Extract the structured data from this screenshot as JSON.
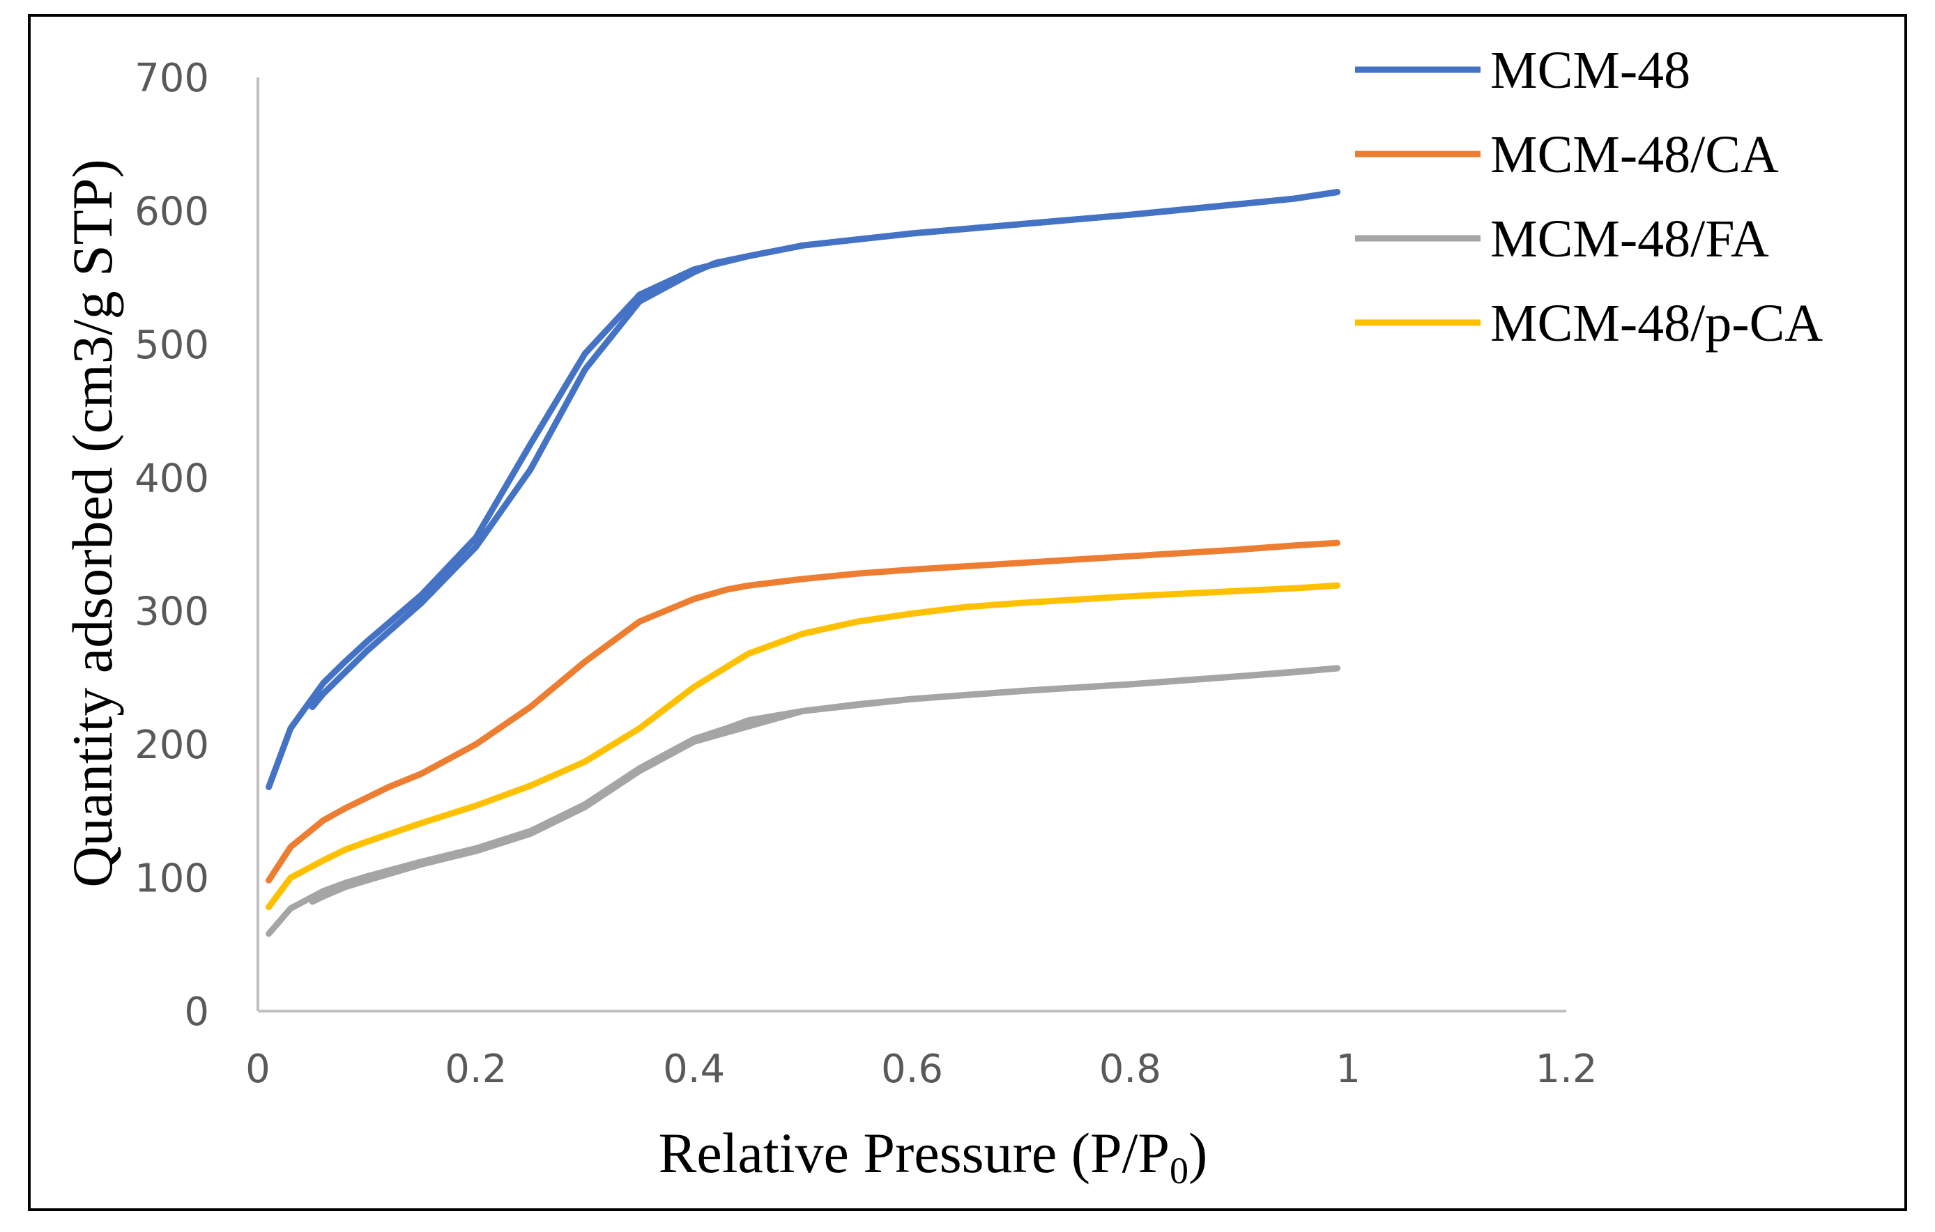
{
  "chart_data": {
    "type": "line",
    "title": "",
    "xlabel": "Relative Pressure (P/P",
    "xlabel_subscript": "0",
    "xlabel_suffix": ")",
    "ylabel": "Quantity adsorbed (cm3/g STP)",
    "xlim": [
      0,
      1.2
    ],
    "ylim": [
      0,
      700
    ],
    "xticks": [
      0,
      0.2,
      0.4,
      0.6,
      0.8,
      1,
      1.2
    ],
    "xtick_labels": [
      "0",
      "0.2",
      "0.4",
      "0.6",
      "0.8",
      "1",
      "1.2"
    ],
    "yticks": [
      0,
      100,
      200,
      300,
      400,
      500,
      600,
      700
    ],
    "ytick_labels": [
      "0",
      "100",
      "200",
      "300",
      "400",
      "500",
      "600",
      "700"
    ],
    "grid": false,
    "legend_position": "top-right",
    "series": [
      {
        "name": "MCM-48",
        "color": "#4472C4",
        "adsorption": [
          [
            0.01,
            168
          ],
          [
            0.03,
            212
          ],
          [
            0.06,
            246
          ],
          [
            0.08,
            262
          ],
          [
            0.1,
            277
          ],
          [
            0.15,
            312
          ],
          [
            0.2,
            355
          ],
          [
            0.25,
            425
          ],
          [
            0.3,
            493
          ],
          [
            0.35,
            537
          ],
          [
            0.4,
            556
          ],
          [
            0.45,
            566
          ],
          [
            0.5,
            574
          ],
          [
            0.6,
            583
          ],
          [
            0.7,
            590
          ],
          [
            0.8,
            597
          ],
          [
            0.9,
            605
          ],
          [
            0.95,
            609
          ],
          [
            0.99,
            614
          ]
        ],
        "desorption": [
          [
            0.99,
            614
          ],
          [
            0.95,
            609
          ],
          [
            0.9,
            605
          ],
          [
            0.8,
            597
          ],
          [
            0.7,
            590
          ],
          [
            0.6,
            583
          ],
          [
            0.5,
            574
          ],
          [
            0.45,
            566
          ],
          [
            0.42,
            561
          ],
          [
            0.4,
            554
          ],
          [
            0.35,
            532
          ],
          [
            0.3,
            481
          ],
          [
            0.25,
            406
          ],
          [
            0.2,
            348
          ],
          [
            0.15,
            306
          ],
          [
            0.1,
            270
          ],
          [
            0.08,
            254
          ],
          [
            0.06,
            238
          ],
          [
            0.05,
            228
          ]
        ]
      },
      {
        "name": "MCM-48/CA",
        "color": "#ED7D31",
        "adsorption": [
          [
            0.01,
            98
          ],
          [
            0.03,
            123
          ],
          [
            0.06,
            143
          ],
          [
            0.08,
            152
          ],
          [
            0.1,
            160
          ],
          [
            0.12,
            168
          ],
          [
            0.15,
            178
          ],
          [
            0.2,
            200
          ],
          [
            0.25,
            228
          ],
          [
            0.3,
            262
          ],
          [
            0.35,
            292
          ],
          [
            0.4,
            309
          ],
          [
            0.43,
            316
          ],
          [
            0.45,
            319
          ],
          [
            0.5,
            324
          ],
          [
            0.55,
            328
          ],
          [
            0.6,
            331
          ],
          [
            0.7,
            336
          ],
          [
            0.8,
            341
          ],
          [
            0.9,
            346
          ],
          [
            0.95,
            349
          ],
          [
            0.99,
            351
          ]
        ]
      },
      {
        "name": "MCM-48/FA",
        "color": "#A5A5A5",
        "adsorption": [
          [
            0.01,
            58
          ],
          [
            0.03,
            77
          ],
          [
            0.06,
            90
          ],
          [
            0.08,
            96
          ],
          [
            0.1,
            101
          ],
          [
            0.15,
            112
          ],
          [
            0.2,
            122
          ],
          [
            0.25,
            135
          ],
          [
            0.3,
            155
          ],
          [
            0.35,
            182
          ],
          [
            0.4,
            204
          ],
          [
            0.43,
            212
          ],
          [
            0.45,
            218
          ],
          [
            0.5,
            225
          ],
          [
            0.55,
            230
          ],
          [
            0.6,
            234
          ],
          [
            0.7,
            240
          ],
          [
            0.8,
            245
          ],
          [
            0.9,
            251
          ],
          [
            0.95,
            254
          ],
          [
            0.99,
            257
          ]
        ],
        "desorption": [
          [
            0.99,
            257
          ],
          [
            0.9,
            251
          ],
          [
            0.8,
            245
          ],
          [
            0.7,
            240
          ],
          [
            0.6,
            234
          ],
          [
            0.5,
            225
          ],
          [
            0.4,
            202
          ],
          [
            0.35,
            180
          ],
          [
            0.3,
            153
          ],
          [
            0.25,
            133
          ],
          [
            0.2,
            120
          ],
          [
            0.15,
            110
          ],
          [
            0.1,
            98
          ],
          [
            0.08,
            93
          ],
          [
            0.06,
            86
          ],
          [
            0.05,
            82
          ]
        ]
      },
      {
        "name": "MCM-48/p-CA",
        "color": "#FFC000",
        "adsorption": [
          [
            0.01,
            78
          ],
          [
            0.03,
            100
          ],
          [
            0.06,
            113
          ],
          [
            0.08,
            121
          ],
          [
            0.1,
            127
          ],
          [
            0.15,
            141
          ],
          [
            0.2,
            154
          ],
          [
            0.25,
            169
          ],
          [
            0.3,
            187
          ],
          [
            0.35,
            212
          ],
          [
            0.4,
            243
          ],
          [
            0.45,
            268
          ],
          [
            0.5,
            283
          ],
          [
            0.55,
            292
          ],
          [
            0.6,
            298
          ],
          [
            0.65,
            303
          ],
          [
            0.7,
            306
          ],
          [
            0.8,
            311
          ],
          [
            0.9,
            315
          ],
          [
            0.95,
            317
          ],
          [
            0.99,
            319
          ]
        ]
      }
    ]
  }
}
